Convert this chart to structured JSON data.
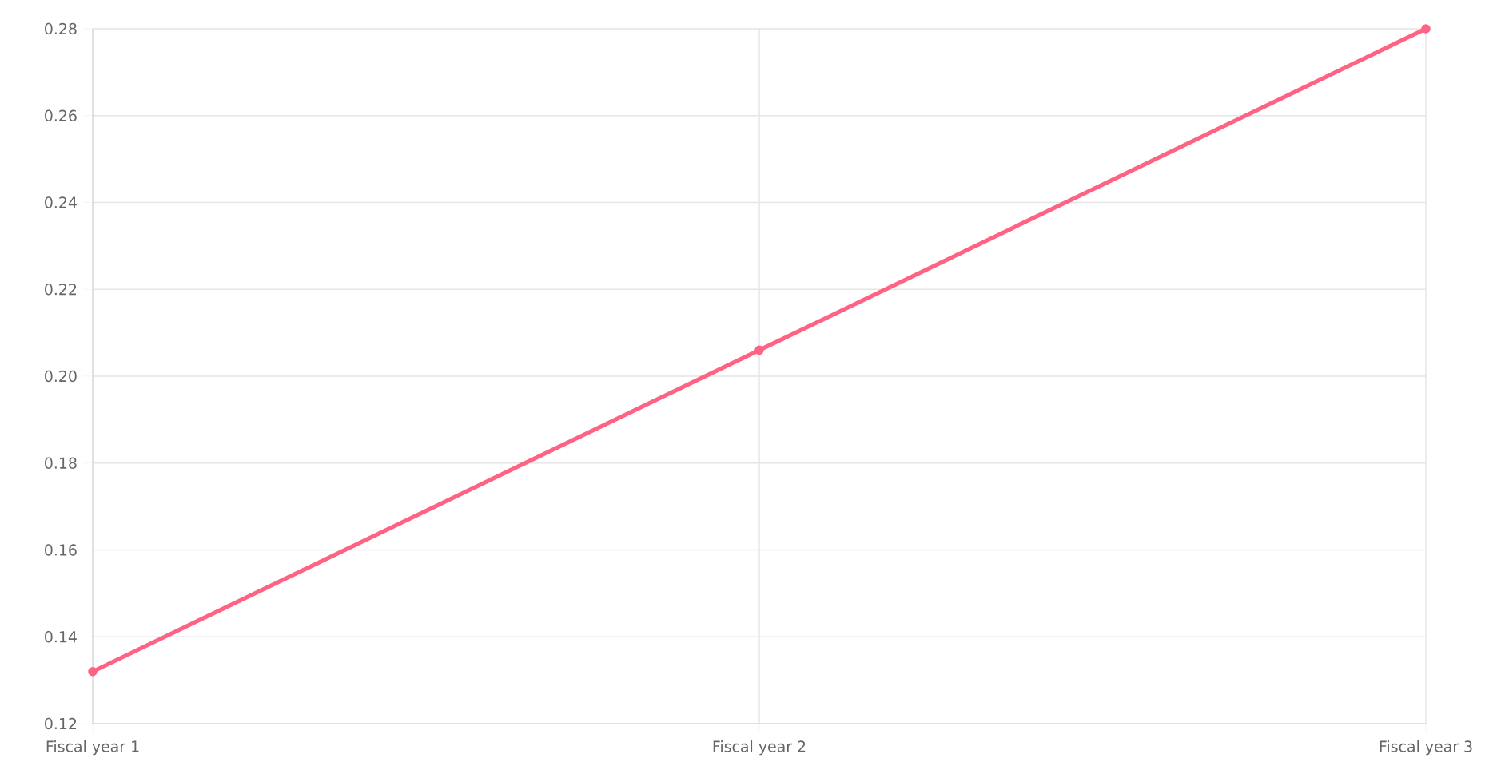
{
  "chart_data": {
    "type": "line",
    "categories": [
      "Fiscal year 1",
      "Fiscal year 2",
      "Fiscal year 3"
    ],
    "series": [
      {
        "color": "#ff6384",
        "values": [
          0.132,
          0.206,
          0.28
        ]
      }
    ],
    "ylim": [
      0.12,
      0.28
    ],
    "yticks": [
      0.12,
      0.14,
      0.16,
      0.18,
      {
        "value": 0.2,
        "label": "0.20"
      },
      0.22,
      0.24,
      0.26,
      0.28
    ],
    "grid": true,
    "marker": "circle",
    "line_style": "solid"
  }
}
